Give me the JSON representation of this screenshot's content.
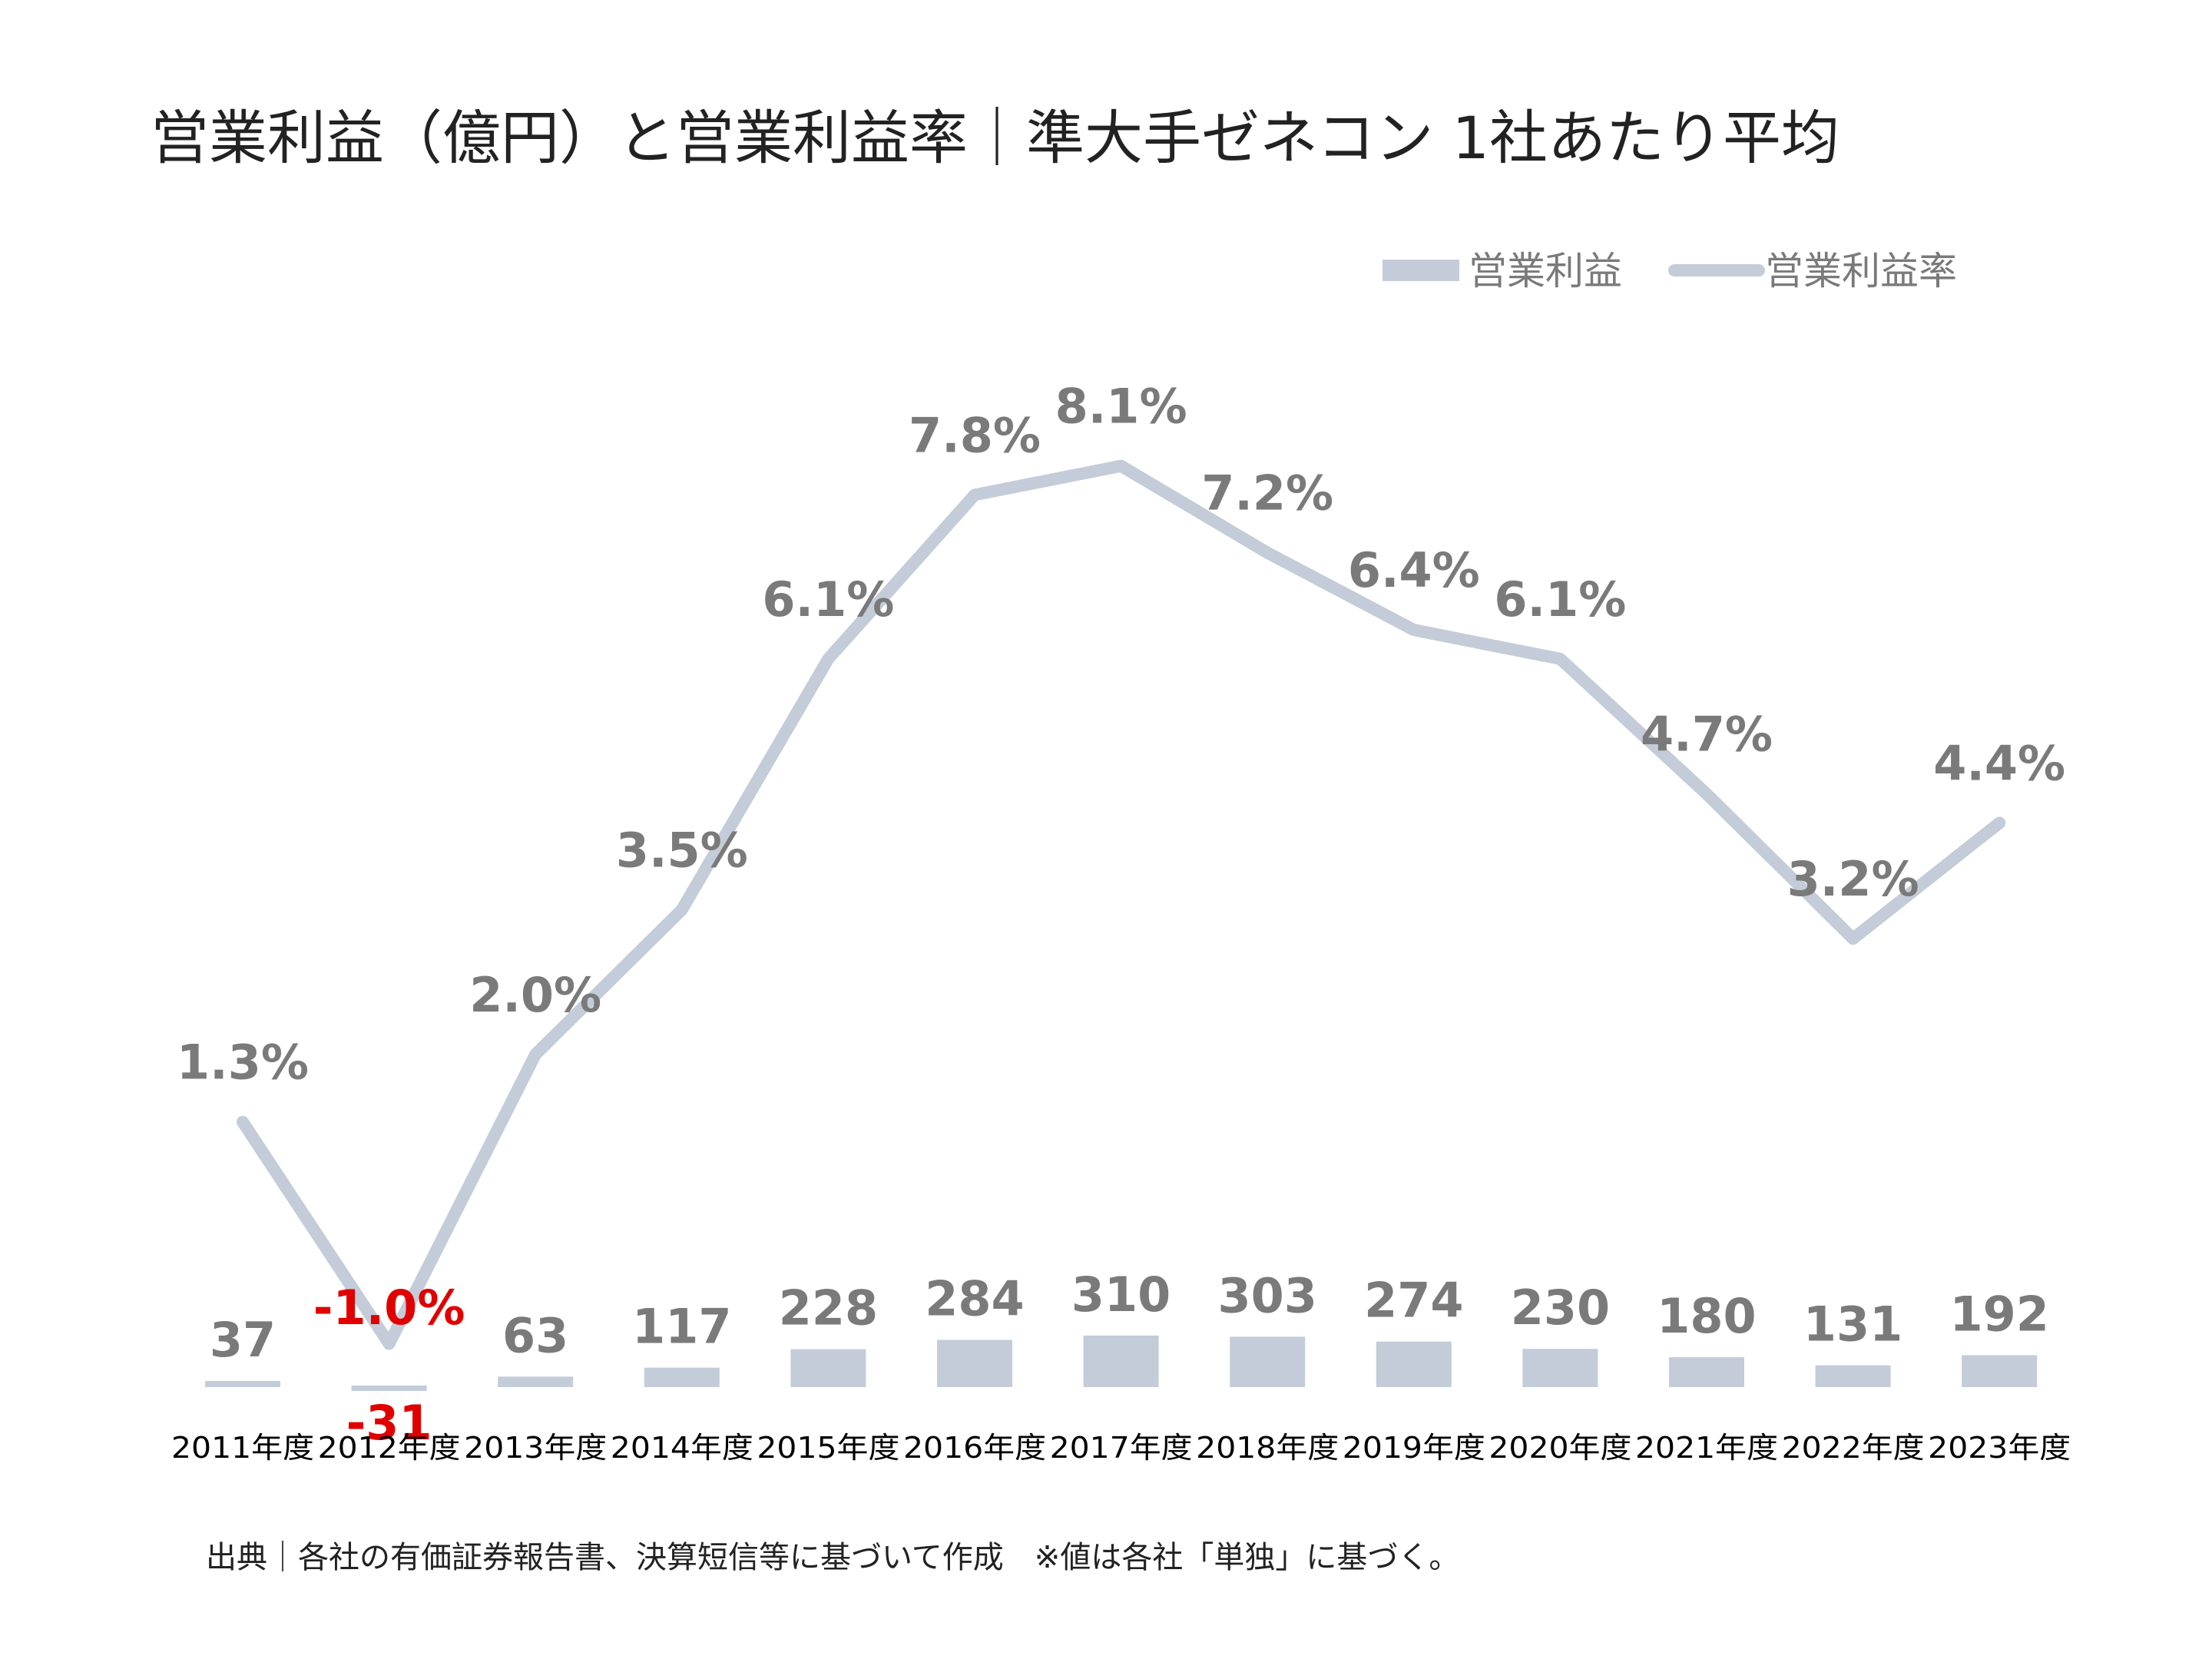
{
  "title": "営業利益（億円）と営業利益率｜準大手ゼネコン 1社あたり平均",
  "source": "出典｜各社の有価証券報告書、決算短信等に基づいて作成　※値は各社「単独」に基づく。",
  "colors": {
    "series": "#c3ccd8",
    "label": "#7a7a7a",
    "negative": "#e00000",
    "axis_text": "#000000"
  },
  "chart_data": {
    "type": "bar+line",
    "categories": [
      "2011年度",
      "2012年度",
      "2013年度",
      "2014年度",
      "2015年度",
      "2016年度",
      "2017年度",
      "2018年度",
      "2019年度",
      "2020年度",
      "2021年度",
      "2022年度",
      "2023年度"
    ],
    "series": [
      {
        "name": "営業利益",
        "type": "bar",
        "values": [
          37,
          -31,
          63,
          117,
          228,
          284,
          310,
          303,
          274,
          230,
          180,
          131,
          192
        ],
        "labels": [
          "37",
          "-31",
          "63",
          "117",
          "228",
          "284",
          "310",
          "303",
          "274",
          "230",
          "180",
          "131",
          "192"
        ]
      },
      {
        "name": "営業利益率",
        "type": "line",
        "values": [
          1.3,
          -1.0,
          2.0,
          3.5,
          6.1,
          7.8,
          8.1,
          7.2,
          6.4,
          6.1,
          4.7,
          3.2,
          4.4
        ],
        "labels": [
          "1.3%",
          "-1.0%",
          "2.0%",
          "3.5%",
          "6.1%",
          "7.8%",
          "8.1%",
          "7.2%",
          "6.4%",
          "6.1%",
          "4.7%",
          "3.2%",
          "4.4%"
        ]
      }
    ],
    "legend": {
      "position": "top-right"
    },
    "grid": false
  }
}
